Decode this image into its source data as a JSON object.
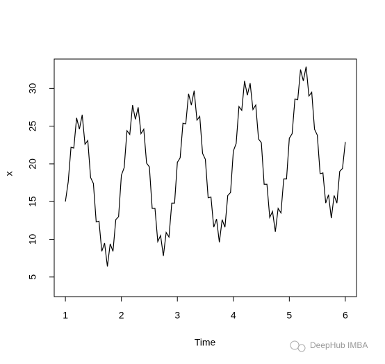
{
  "chart_data": {
    "type": "line",
    "xlabel": "Time",
    "ylabel": "x",
    "watermark": "DeepHub IMBA",
    "color": "#000000",
    "x": [
      1,
      1.05,
      1.1,
      1.15,
      1.2,
      1.25,
      1.3,
      1.35,
      1.4,
      1.45,
      1.5,
      1.55,
      1.6,
      1.65,
      1.7,
      1.75,
      1.8,
      1.85,
      1.9,
      1.95,
      2,
      2.05,
      2.1,
      2.15,
      2.2,
      2.25,
      2.3,
      2.35,
      2.4,
      2.45,
      2.5,
      2.55,
      2.6,
      2.65,
      2.7,
      2.75,
      2.8,
      2.85,
      2.9,
      2.95,
      3,
      3.05,
      3.1,
      3.15,
      3.2,
      3.25,
      3.3,
      3.35,
      3.4,
      3.45,
      3.5,
      3.55,
      3.6,
      3.65,
      3.7,
      3.75,
      3.8,
      3.85,
      3.9,
      3.95,
      4,
      4.05,
      4.1,
      4.15,
      4.2,
      4.25,
      4.3,
      4.35,
      4.4,
      4.45,
      4.5,
      4.55,
      4.6,
      4.65,
      4.7,
      4.75,
      4.8,
      4.85,
      4.9,
      4.95,
      5,
      5.05,
      5.1,
      5.15,
      5.2,
      5.25,
      5.3,
      5.35,
      5.4,
      5.45,
      5.5,
      5.55,
      5.6,
      5.65,
      5.7,
      5.75,
      5.8,
      5.85,
      5.9,
      5.95,
      6
    ],
    "values": [
      15.0,
      17.6,
      22.2,
      22.1,
      26.1,
      24.6,
      26.5,
      22.6,
      23.1,
      18.2,
      17.4,
      12.3,
      12.4,
      8.4,
      9.5,
      6.4,
      9.4,
      8.4,
      12.6,
      13.0,
      18.5,
      19.5,
      24.4,
      23.9,
      27.8,
      25.9,
      27.5,
      24.0,
      24.6,
      20.1,
      19.6,
      14.1,
      14.1,
      9.7,
      10.5,
      7.8,
      10.9,
      10.3,
      14.8,
      14.8,
      20.2,
      20.8,
      25.4,
      25.3,
      29.3,
      27.8,
      29.7,
      25.8,
      26.3,
      21.4,
      20.6,
      15.5,
      15.6,
      11.6,
      12.7,
      9.6,
      12.6,
      11.6,
      15.8,
      16.2,
      21.7,
      22.7,
      27.6,
      27.1,
      31.0,
      29.1,
      30.7,
      27.2,
      27.8,
      23.3,
      22.8,
      17.3,
      17.3,
      12.9,
      13.7,
      11.0,
      14.1,
      13.5,
      18.0,
      18.0,
      23.4,
      24.0,
      28.6,
      28.5,
      32.5,
      31.0,
      32.9,
      29.0,
      29.5,
      24.6,
      23.8,
      18.7,
      18.8,
      14.8,
      15.9,
      12.8,
      15.8,
      14.8,
      19.0,
      19.4,
      22.9
    ],
    "xlim": [
      0.8,
      6.2
    ],
    "ylim": [
      2.4,
      33.9
    ],
    "xticks": [
      1,
      2,
      3,
      4,
      5,
      6
    ],
    "yticks": [
      5,
      10,
      15,
      20,
      25,
      30
    ]
  }
}
